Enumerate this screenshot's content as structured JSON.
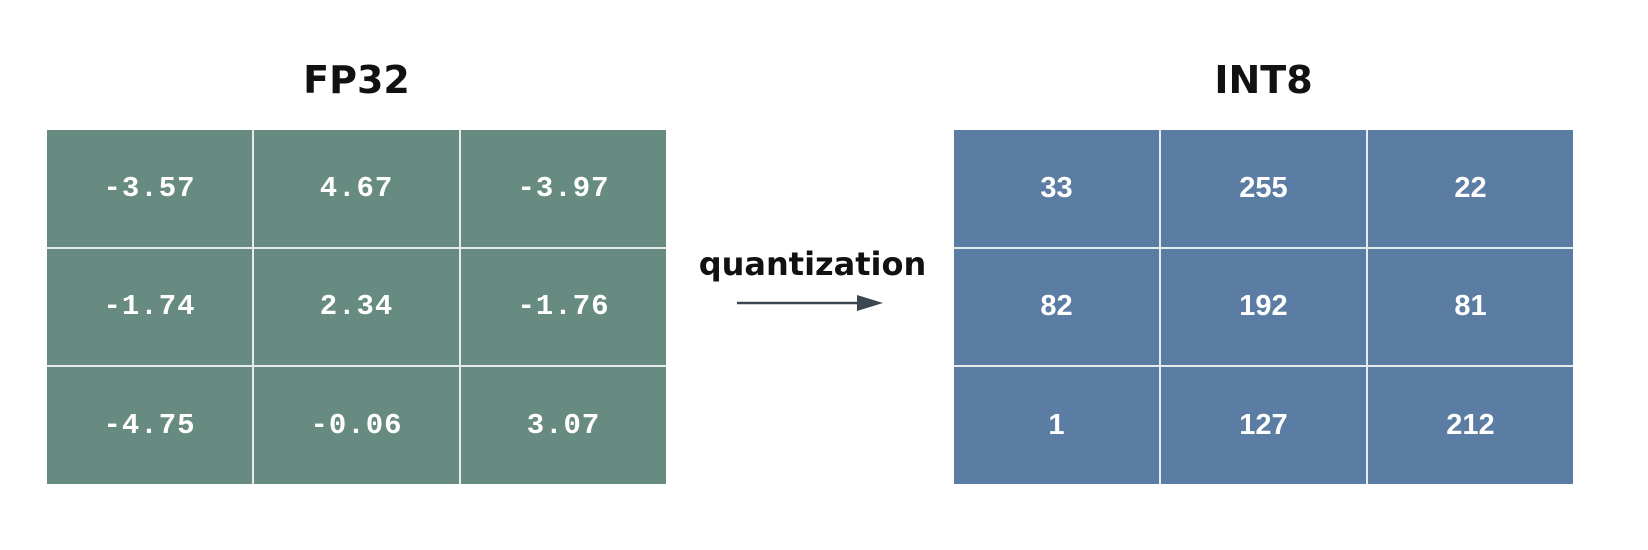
{
  "fp32": {
    "title": "FP32",
    "color": "#678b80",
    "rows": [
      [
        "-3.57",
        "4.67",
        "-3.97"
      ],
      [
        "-1.74",
        "2.34",
        "-1.76"
      ],
      [
        "-4.75",
        "-0.06",
        "3.07"
      ]
    ]
  },
  "arrow": {
    "label": "quantization",
    "icon": "arrow-right-icon"
  },
  "int8": {
    "title": "INT8",
    "color": "#5b7ca3",
    "rows": [
      [
        "33",
        "255",
        "22"
      ],
      [
        "82",
        "192",
        "81"
      ],
      [
        "1",
        "127",
        "212"
      ]
    ]
  }
}
